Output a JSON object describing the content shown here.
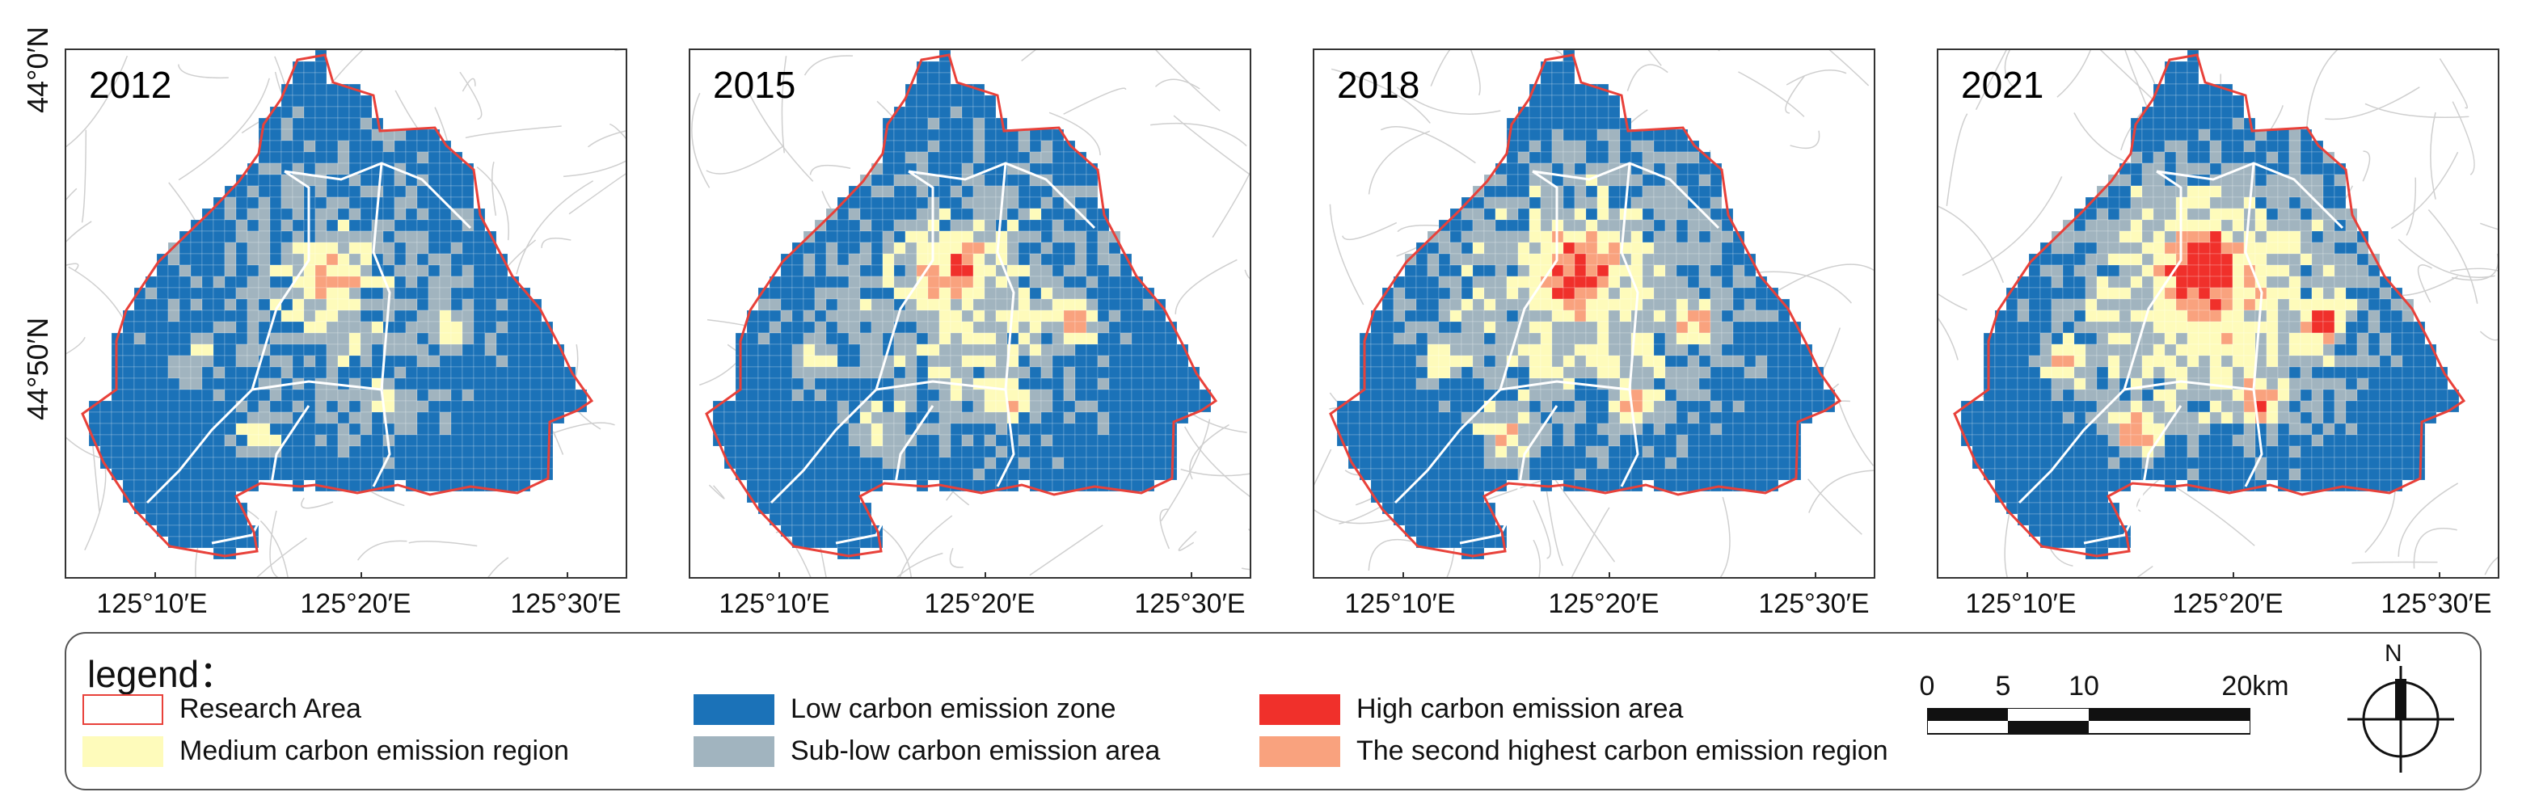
{
  "panels": [
    {
      "year": "2012"
    },
    {
      "year": "2015"
    },
    {
      "year": "2018"
    },
    {
      "year": "2021"
    }
  ],
  "axes": {
    "x_ticks": [
      "125°10′E",
      "125°20′E",
      "125°30′E"
    ],
    "y_ticks": [
      "44°0′N",
      "44°50′N"
    ]
  },
  "legend": {
    "title": "legend：",
    "items": [
      {
        "label": "Research Area",
        "color": "#ffffff",
        "border": "#e8413a"
      },
      {
        "label": "Medium carbon emission region",
        "color": "#fefbbb"
      },
      {
        "label": "Low carbon emission zone",
        "color": "#1b72b8"
      },
      {
        "label": "Sub-low carbon emission area",
        "color": "#a1b4bf"
      },
      {
        "label": "High carbon emission area",
        "color": "#f0302b"
      },
      {
        "label": "The second highest carbon emission region",
        "color": "#f9a27e"
      }
    ]
  },
  "scale_bar": {
    "labels": [
      "0",
      "5",
      "10",
      "20km"
    ]
  },
  "north_arrow": {
    "label": "N"
  }
}
